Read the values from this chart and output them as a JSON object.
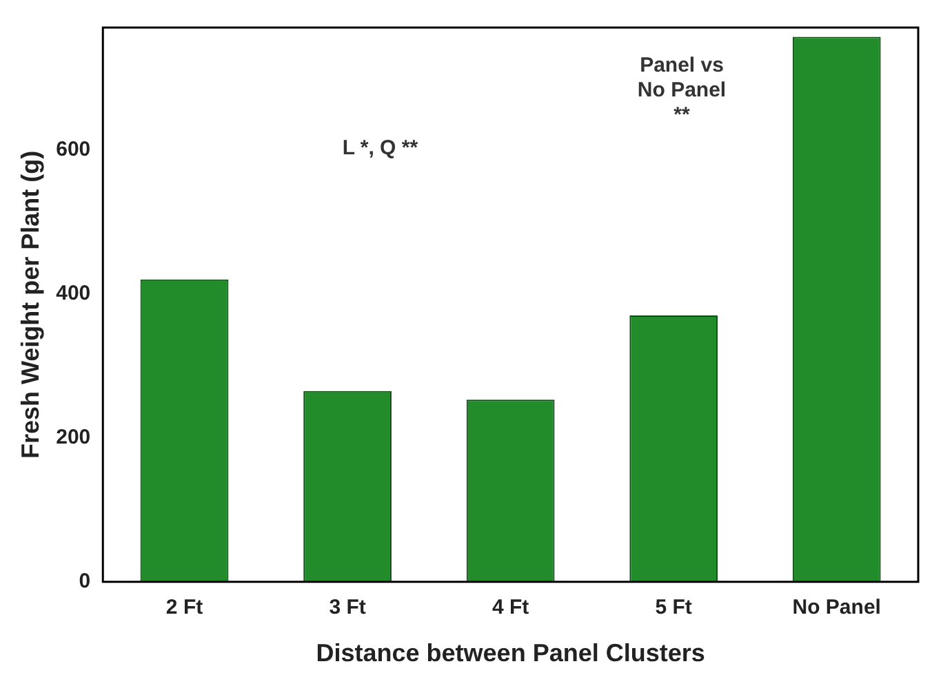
{
  "chart_data": {
    "type": "bar",
    "xlabel": "Distance between Panel Clusters",
    "ylabel": "Fresh Weight per Plant (g)",
    "categories": [
      "2 Ft",
      "3 Ft",
      "4 Ft",
      "5 Ft",
      "No Panel"
    ],
    "values": [
      420,
      265,
      253,
      370,
      757
    ],
    "color": "#228b2a",
    "ylim": [
      0,
      770
    ],
    "yticks": [
      0,
      200,
      400,
      600
    ],
    "grid": false,
    "legend": false,
    "annotations": [
      "L *, Q **",
      "Panel vs\nNo Panel\n**"
    ]
  }
}
